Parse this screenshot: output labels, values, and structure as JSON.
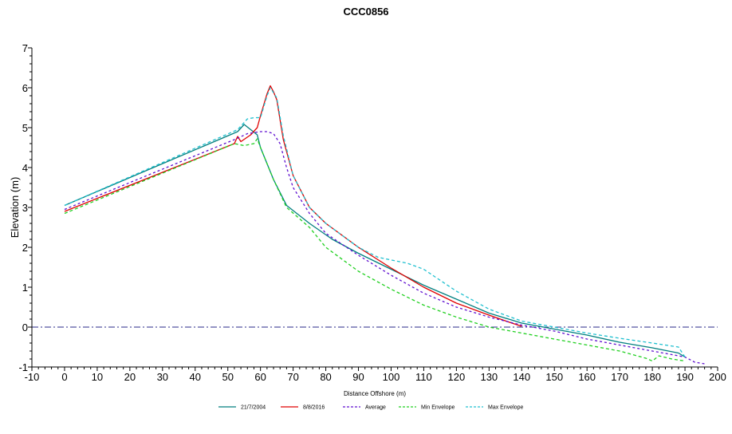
{
  "chart_data": {
    "type": "line",
    "title": "CCC0856",
    "xlabel": "Distance Offshore (m)",
    "ylabel": "Elevation (m)",
    "xlim": [
      -10,
      200
    ],
    "ylim": [
      -1,
      7
    ],
    "xticks": [
      "-10",
      "0",
      "10",
      "20",
      "30",
      "40",
      "50",
      "60",
      "70",
      "80",
      "90",
      "100",
      "110",
      "120",
      "130",
      "140",
      "150",
      "160",
      "170",
      "180",
      "190",
      "200"
    ],
    "yticks": [
      "-1",
      "0",
      "1",
      "2",
      "3",
      "4",
      "5",
      "6",
      "7"
    ],
    "reference_line": {
      "y": 0,
      "style": "dash-dot",
      "color": "#2a2a8a"
    },
    "legend_position": "bottom",
    "series": [
      {
        "name": "21/7/2004",
        "color": "#007f7f",
        "dash": "solid",
        "points": [
          [
            0,
            3.05
          ],
          [
            53,
            4.9
          ],
          [
            55,
            5.08
          ],
          [
            57,
            4.95
          ],
          [
            59,
            4.82
          ],
          [
            60,
            4.5
          ],
          [
            64,
            3.7
          ],
          [
            68,
            3.05
          ],
          [
            75,
            2.6
          ],
          [
            82,
            2.2
          ],
          [
            90,
            1.85
          ],
          [
            100,
            1.45
          ],
          [
            110,
            1.05
          ],
          [
            120,
            0.7
          ],
          [
            130,
            0.35
          ],
          [
            140,
            0.1
          ],
          [
            150,
            -0.05
          ],
          [
            160,
            -0.2
          ],
          [
            170,
            -0.38
          ],
          [
            180,
            -0.52
          ],
          [
            188,
            -0.65
          ],
          [
            190,
            -0.75
          ]
        ]
      },
      {
        "name": "8/8/2016",
        "color": "#e00000",
        "dash": "solid",
        "points": [
          [
            0,
            2.9
          ],
          [
            52,
            4.6
          ],
          [
            53,
            4.78
          ],
          [
            54,
            4.65
          ],
          [
            57,
            4.82
          ],
          [
            59,
            5.0
          ],
          [
            60,
            5.3
          ],
          [
            62,
            5.85
          ],
          [
            63,
            6.05
          ],
          [
            64,
            5.9
          ],
          [
            65,
            5.7
          ],
          [
            67,
            4.7
          ],
          [
            70,
            3.8
          ],
          [
            75,
            3.0
          ],
          [
            80,
            2.6
          ],
          [
            90,
            2.0
          ],
          [
            100,
            1.48
          ],
          [
            110,
            1.0
          ],
          [
            120,
            0.6
          ],
          [
            130,
            0.3
          ],
          [
            137,
            0.1
          ],
          [
            140,
            0.02
          ]
        ]
      },
      {
        "name": "Average",
        "color": "#6010d0",
        "dash": "3,3",
        "points": [
          [
            0,
            2.95
          ],
          [
            52,
            4.7
          ],
          [
            56,
            4.85
          ],
          [
            60,
            4.9
          ],
          [
            62,
            4.9
          ],
          [
            64,
            4.85
          ],
          [
            66,
            4.6
          ],
          [
            68,
            4.0
          ],
          [
            70,
            3.5
          ],
          [
            75,
            2.85
          ],
          [
            80,
            2.35
          ],
          [
            90,
            1.8
          ],
          [
            100,
            1.3
          ],
          [
            110,
            0.85
          ],
          [
            120,
            0.5
          ],
          [
            130,
            0.25
          ],
          [
            140,
            0.05
          ],
          [
            150,
            -0.1
          ],
          [
            160,
            -0.3
          ],
          [
            170,
            -0.45
          ],
          [
            180,
            -0.6
          ],
          [
            190,
            -0.75
          ],
          [
            193,
            -0.88
          ],
          [
            196,
            -0.92
          ]
        ]
      },
      {
        "name": "Min Envelope",
        "color": "#20d020",
        "dash": "4,3",
        "points": [
          [
            0,
            2.85
          ],
          [
            52,
            4.6
          ],
          [
            55,
            4.55
          ],
          [
            58,
            4.6
          ],
          [
            59,
            4.72
          ],
          [
            60,
            4.5
          ],
          [
            64,
            3.7
          ],
          [
            68,
            3.0
          ],
          [
            75,
            2.5
          ],
          [
            80,
            2.0
          ],
          [
            90,
            1.4
          ],
          [
            100,
            0.95
          ],
          [
            110,
            0.55
          ],
          [
            120,
            0.25
          ],
          [
            130,
            0.0
          ],
          [
            140,
            -0.15
          ],
          [
            150,
            -0.3
          ],
          [
            160,
            -0.45
          ],
          [
            170,
            -0.6
          ],
          [
            178,
            -0.78
          ],
          [
            180,
            -0.85
          ],
          [
            182,
            -0.72
          ],
          [
            186,
            -0.8
          ],
          [
            190,
            -0.85
          ]
        ]
      },
      {
        "name": "Max Envelope",
        "color": "#20c0d0",
        "dash": "4,3",
        "points": [
          [
            0,
            3.05
          ],
          [
            53,
            4.95
          ],
          [
            56,
            5.22
          ],
          [
            58,
            5.25
          ],
          [
            60,
            5.25
          ],
          [
            62,
            5.8
          ],
          [
            63,
            6.0
          ],
          [
            65,
            5.75
          ],
          [
            67,
            4.8
          ],
          [
            70,
            3.8
          ],
          [
            75,
            3.0
          ],
          [
            80,
            2.6
          ],
          [
            90,
            2.0
          ],
          [
            96,
            1.75
          ],
          [
            105,
            1.6
          ],
          [
            110,
            1.45
          ],
          [
            120,
            0.9
          ],
          [
            130,
            0.45
          ],
          [
            140,
            0.15
          ],
          [
            150,
            0.0
          ],
          [
            160,
            -0.15
          ],
          [
            170,
            -0.28
          ],
          [
            180,
            -0.4
          ],
          [
            188,
            -0.5
          ],
          [
            190,
            -0.75
          ]
        ]
      }
    ]
  }
}
